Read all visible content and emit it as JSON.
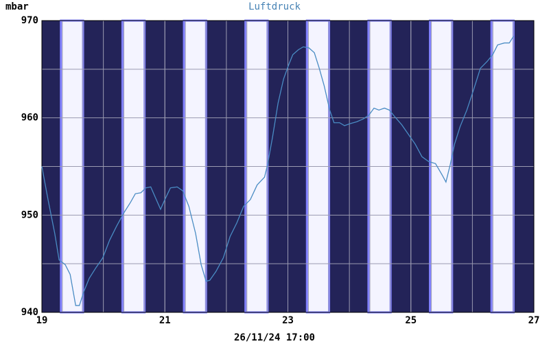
{
  "chart_data": {
    "type": "line",
    "title": "Luftdruck",
    "y_label": "mbar",
    "footer": "26/11/24 17:00",
    "x": [
      19.0,
      19.1,
      19.21,
      19.28,
      19.38,
      19.46,
      19.55,
      19.61,
      19.68,
      19.77,
      19.88,
      19.99,
      20.1,
      20.21,
      20.33,
      20.44,
      20.52,
      20.61,
      20.69,
      20.77,
      20.86,
      20.93,
      21.0,
      21.09,
      21.2,
      21.29,
      21.39,
      21.5,
      21.59,
      21.67,
      21.73,
      21.83,
      21.95,
      22.06,
      22.17,
      22.28,
      22.39,
      22.5,
      22.62,
      22.67,
      22.75,
      22.84,
      22.93,
      23.01,
      23.08,
      23.17,
      23.25,
      23.34,
      23.43,
      23.51,
      23.59,
      23.68,
      23.75,
      23.84,
      23.92,
      24.01,
      24.12,
      24.23,
      24.32,
      24.4,
      24.48,
      24.57,
      24.65,
      24.74,
      24.85,
      24.96,
      25.07,
      25.18,
      25.29,
      25.4,
      25.51,
      25.57,
      25.64,
      25.71,
      25.8,
      25.91,
      26.02,
      26.13,
      26.24,
      26.33,
      26.41,
      26.52,
      26.6,
      26.67
    ],
    "series": [
      {
        "name": "Luftdruck",
        "color": "#4a8cc4",
        "values": [
          955.0,
          951.6,
          948.1,
          945.4,
          944.9,
          943.9,
          940.7,
          940.7,
          942.1,
          943.5,
          944.6,
          945.6,
          947.4,
          948.8,
          950.2,
          951.3,
          952.2,
          952.3,
          952.8,
          952.9,
          951.6,
          950.6,
          951.6,
          952.8,
          952.9,
          952.5,
          950.9,
          948.1,
          944.9,
          943.2,
          943.3,
          944.2,
          945.6,
          947.8,
          949.2,
          950.9,
          951.6,
          953.1,
          953.9,
          955.2,
          958.0,
          961.5,
          964.0,
          965.4,
          966.5,
          967.0,
          967.3,
          967.2,
          966.7,
          965.1,
          963.3,
          960.8,
          959.5,
          959.5,
          959.2,
          959.4,
          959.6,
          959.9,
          960.3,
          961.0,
          960.8,
          961.0,
          960.8,
          960.1,
          959.3,
          958.3,
          957.3,
          956.0,
          955.5,
          955.3,
          954.1,
          953.4,
          955.2,
          957.3,
          959.1,
          960.8,
          962.9,
          965.1,
          965.8,
          966.5,
          967.5,
          967.7,
          967.7,
          968.4
        ]
      }
    ],
    "xlim": [
      19,
      27
    ],
    "xticks": [
      19,
      21,
      23,
      25,
      27
    ],
    "ylim": [
      940,
      970
    ],
    "yticks": [
      940,
      950,
      960,
      970
    ],
    "grid": true
  }
}
